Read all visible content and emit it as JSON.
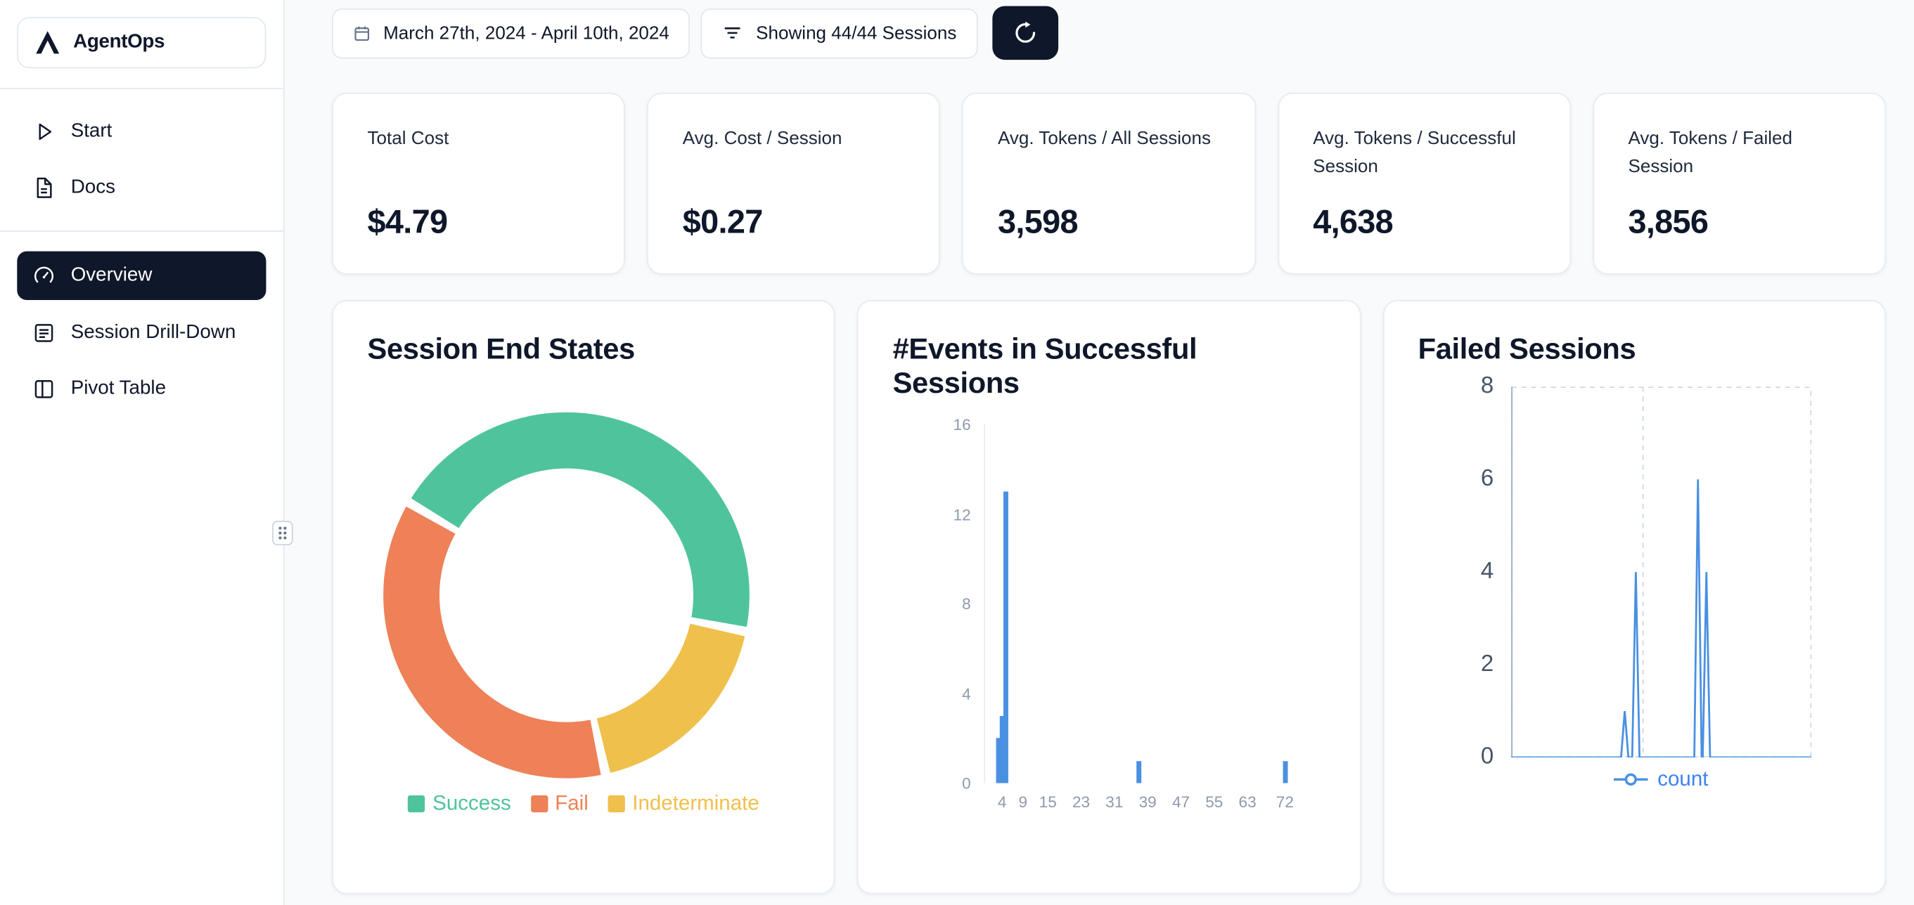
{
  "app": {
    "name": "AgentOps"
  },
  "sidebar": {
    "items": [
      {
        "label": "Start",
        "icon": "play-icon",
        "active": false
      },
      {
        "label": "Docs",
        "icon": "document-icon",
        "active": false
      },
      {
        "label": "Overview",
        "icon": "gauge-icon",
        "active": true
      },
      {
        "label": "Session Drill-Down",
        "icon": "list-icon",
        "active": false
      },
      {
        "label": "Pivot Table",
        "icon": "table-icon",
        "active": false
      }
    ]
  },
  "toolbar": {
    "date_range": "March 27th, 2024 - April 10th, 2024",
    "sessions_filter": "Showing 44/44 Sessions",
    "refresh_icon": "refresh-icon"
  },
  "stats": [
    {
      "label": "Total Cost",
      "value": "$4.79"
    },
    {
      "label": "Avg. Cost / Session",
      "value": "$0.27"
    },
    {
      "label": "Avg. Tokens / All Sessions",
      "value": "3,598"
    },
    {
      "label": "Avg. Tokens / Successful Session",
      "value": "4,638"
    },
    {
      "label": "Avg. Tokens / Failed Session",
      "value": "3,856"
    }
  ],
  "chart_data": [
    {
      "type": "pie",
      "variant": "donut",
      "title": "Session End States",
      "categories": [
        "Success",
        "Fail",
        "Indeterminate"
      ],
      "values_pct": [
        45,
        37,
        18
      ],
      "colors": [
        "#4fc49c",
        "#ee8158",
        "#f0c04c"
      ],
      "legend_position": "bottom",
      "render": {
        "start_deg": -58,
        "gap_deg": 3,
        "order": [
          0,
          2,
          1
        ]
      }
    },
    {
      "type": "bar",
      "title": "#Events in Successful Sessions",
      "xlabel": "",
      "ylabel": "",
      "x_ticks": [
        4,
        9,
        15,
        23,
        31,
        39,
        47,
        55,
        63,
        72
      ],
      "y_ticks": [
        0,
        4,
        8,
        12,
        16
      ],
      "xlim": [
        0,
        86
      ],
      "ylim": [
        0,
        16
      ],
      "color": "#4a90e2",
      "bars": [
        {
          "x": 3,
          "count": 2
        },
        {
          "x": 4,
          "count": 3
        },
        {
          "x": 5,
          "count": 13
        },
        {
          "x": 37,
          "count": 1
        },
        {
          "x": 72,
          "count": 1
        }
      ]
    },
    {
      "type": "line",
      "title": "Failed Sessions",
      "series_name": "count",
      "y_ticks": [
        0,
        2,
        4,
        6,
        8
      ],
      "ylim": [
        0,
        8
      ],
      "x_axis": "unlabeled",
      "color": "#4a90e2",
      "legend_color": "#3b82f6",
      "baseline": 0,
      "points": [
        {
          "x": 0.378,
          "y": 1
        },
        {
          "x": 0.415,
          "y": 4
        },
        {
          "x": 0.622,
          "y": 6
        },
        {
          "x": 0.65,
          "y": 4
        }
      ]
    }
  ]
}
